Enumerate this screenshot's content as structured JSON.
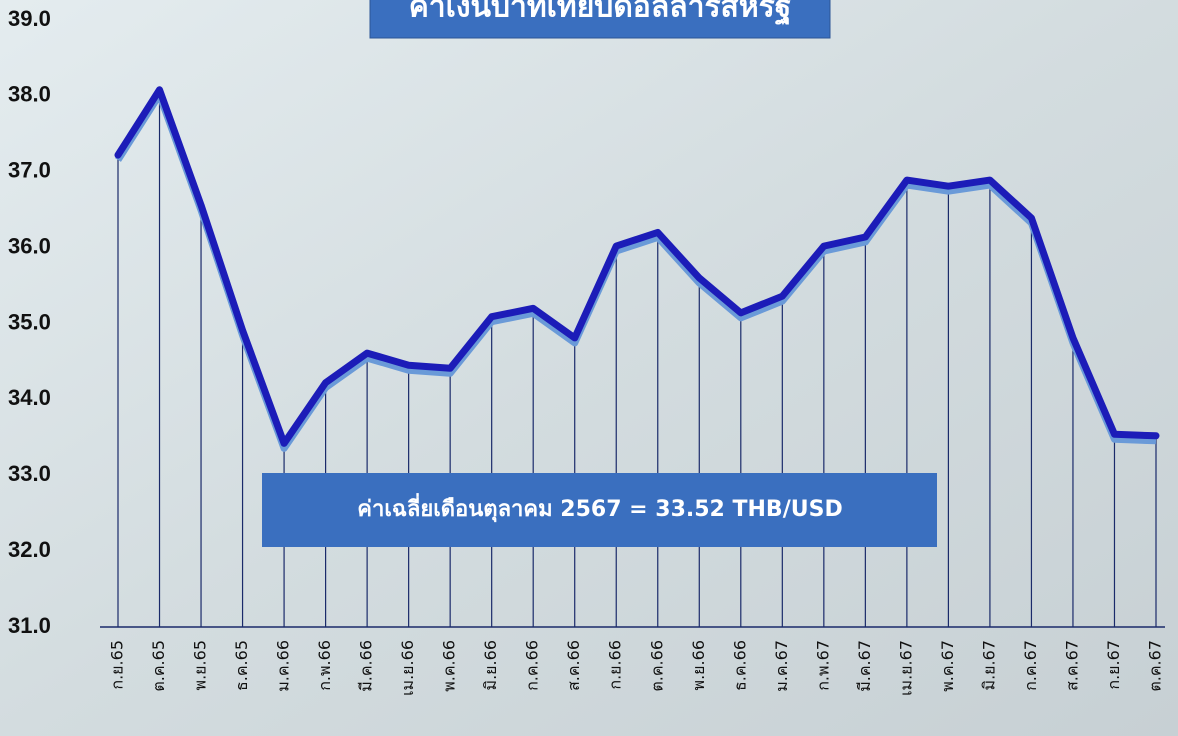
{
  "chart_data": {
    "type": "line",
    "title": "ค่าเงินบาทเทียบดอลลาร์สหรัฐ",
    "annotation": "ค่าเฉลี่ยเดือนตุลาคม 2567 = 33.52 THB/USD",
    "categories": [
      "ก.ย.65",
      "ต.ค.65",
      "พ.ย.65",
      "ธ.ค.65",
      "ม.ค.66",
      "ก.พ.66",
      "มี.ค.66",
      "เม.ย.66",
      "พ.ค.66",
      "มิ.ย.66",
      "ก.ค.66",
      "ส.ค.66",
      "ก.ย.66",
      "ต.ค.66",
      "พ.ย.66",
      "ธ.ค.66",
      "ม.ค.67",
      "ก.พ.67",
      "มี.ค.67",
      "เม.ย.67",
      "พ.ค.67",
      "มิ.ย.67",
      "ก.ค.67",
      "ส.ค.67",
      "ก.ย.67",
      "ต.ค.67"
    ],
    "values": [
      37.22,
      38.08,
      36.56,
      34.91,
      33.42,
      34.22,
      34.61,
      34.45,
      34.41,
      35.09,
      35.2,
      34.81,
      36.02,
      36.2,
      35.6,
      35.14,
      35.36,
      36.02,
      36.14,
      36.89,
      36.81,
      36.89,
      36.39,
      34.81,
      33.54,
      33.52
    ],
    "color": "#1c1cb8",
    "ylim": [
      31,
      39
    ],
    "yticks": [
      {
        "value": 31,
        "label": "31.0"
      },
      {
        "value": 32,
        "label": "32.0"
      },
      {
        "value": 33,
        "label": "33.0"
      },
      {
        "value": 34,
        "label": "34.0"
      },
      {
        "value": 35,
        "label": "35.0"
      },
      {
        "value": 36,
        "label": "36.0"
      },
      {
        "value": 37,
        "label": "37.0"
      },
      {
        "value": 38,
        "label": "38.0"
      },
      {
        "value": 39,
        "label": "39.0"
      }
    ],
    "drop_lines": true
  }
}
